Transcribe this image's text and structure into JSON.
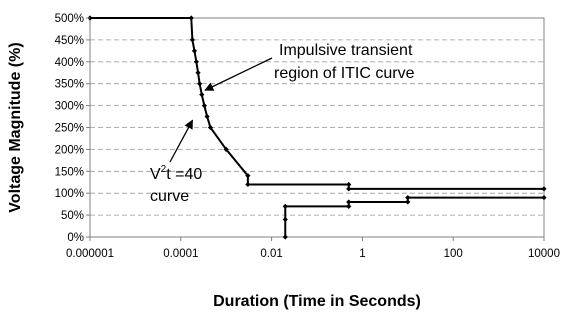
{
  "chart_data": {
    "type": "line",
    "title": "",
    "xlabel": "Duration (Time in Seconds)",
    "ylabel": "Voltage Magnitude (%)",
    "x_scale": "log",
    "xlim": [
      1e-06,
      10000
    ],
    "ylim": [
      0,
      500
    ],
    "y_ticks": [
      0,
      50,
      100,
      150,
      200,
      250,
      300,
      350,
      400,
      450,
      500
    ],
    "y_tick_labels": [
      "0%",
      "50%",
      "100%",
      "150%",
      "200%",
      "250%",
      "300%",
      "350%",
      "400%",
      "450%",
      "500%"
    ],
    "x_ticks": [
      1e-06,
      0.0001,
      0.01,
      1,
      100,
      10000
    ],
    "x_tick_labels": [
      "0.000001",
      "0.0001",
      "0.01",
      "1",
      "100",
      "10000"
    ],
    "grid": "horizontal dashed",
    "series": [
      {
        "color": "#000000",
        "points": [
          [
            1e-06,
            500
          ],
          [
            0.00017,
            500
          ],
          [
            0.00018,
            450
          ],
          [
            0.0002,
            425
          ],
          [
            0.00022,
            400
          ],
          [
            0.00024,
            375
          ],
          [
            0.00026,
            350
          ],
          [
            0.00029,
            325
          ],
          [
            0.00033,
            300
          ],
          [
            0.00038,
            275
          ],
          [
            0.00045,
            250
          ],
          [
            0.001,
            200
          ],
          [
            0.003,
            140
          ],
          [
            0.003,
            120
          ],
          [
            0.5,
            120
          ],
          [
            0.5,
            110
          ],
          [
            10000,
            110
          ]
        ]
      },
      {
        "color": "#000000",
        "points": [
          [
            0.02,
            0
          ],
          [
            0.02,
            40
          ],
          [
            0.02,
            70
          ],
          [
            0.5,
            70
          ],
          [
            0.5,
            80
          ],
          [
            10,
            80
          ],
          [
            10,
            90
          ],
          [
            10000,
            90
          ]
        ]
      }
    ],
    "annotations": [
      {
        "lines": [
          "Impulsive  transient",
          "region of ITIC curve"
        ],
        "arrow_to": [
          0.00028,
          335
        ]
      },
      {
        "lines": [
          "V",
          "t =40",
          "curve"
        ],
        "superscript": "2",
        "arrow_to": [
          0.0002,
          280
        ]
      }
    ]
  }
}
